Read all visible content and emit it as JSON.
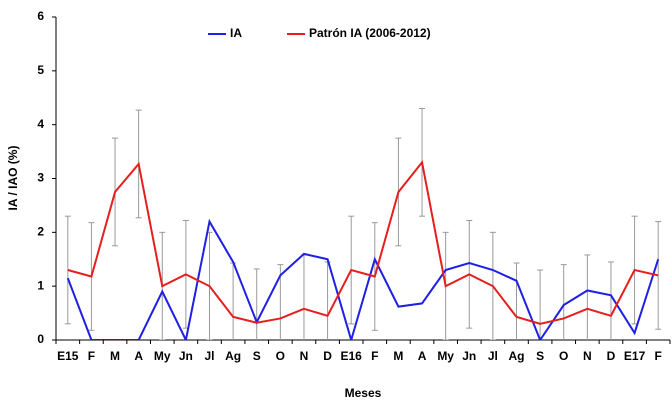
{
  "chart_data": {
    "type": "line",
    "x_label": "Meses",
    "y_label": "IA / IAO (%)",
    "categories": [
      "E15",
      "F",
      "M",
      "A",
      "My",
      "Jn",
      "Jl",
      "Ag",
      "S",
      "O",
      "N",
      "D",
      "E16",
      "F",
      "M",
      "A",
      "My",
      "Jn",
      "Jl",
      "Ag",
      "S",
      "O",
      "N",
      "D",
      "E17",
      "F"
    ],
    "series": [
      {
        "name": "IA",
        "color": "#1f1fe6",
        "values": [
          1.15,
          0,
          0,
          0,
          0.9,
          0,
          2.2,
          1.45,
          0.33,
          1.2,
          1.6,
          1.5,
          0,
          1.5,
          0.62,
          0.68,
          1.3,
          1.43,
          1.3,
          1.1,
          0,
          0.65,
          0.92,
          0.83,
          0.13,
          1.5
        ]
      },
      {
        "name": "Patrón IA (2006-2012)",
        "color": "#e61e1e",
        "values": [
          1.3,
          1.18,
          2.75,
          3.27,
          1.0,
          1.22,
          1.0,
          0.43,
          0.32,
          0.4,
          0.58,
          0.45,
          1.3,
          1.18,
          2.75,
          3.3,
          1.0,
          1.22,
          1.0,
          0.43,
          0.3,
          0.4,
          0.58,
          0.45,
          1.3,
          1.2
        ],
        "errors": [
          1,
          1,
          1,
          1,
          1,
          1,
          1,
          1,
          1,
          1,
          1,
          1,
          1,
          1,
          1,
          1,
          1,
          1,
          1,
          1,
          1,
          1,
          1,
          1,
          1,
          1
        ]
      }
    ],
    "ylim": [
      0,
      6
    ],
    "yticks": [
      0,
      1,
      2,
      3,
      4,
      5,
      6
    ],
    "grid": false,
    "legend": "top"
  }
}
